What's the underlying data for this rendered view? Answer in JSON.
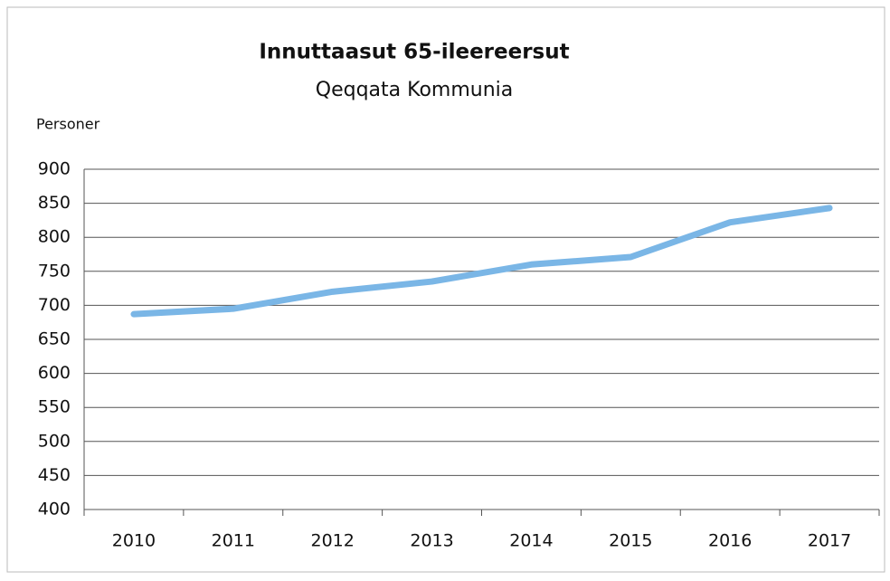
{
  "chart_data": {
    "type": "line",
    "title": "Innuttaasut 65-ileereersut",
    "subtitle": "Qeqqata Kommunia",
    "y_label": "Personer",
    "categories": [
      "2010",
      "2011",
      "2012",
      "2013",
      "2014",
      "2015",
      "2016",
      "2017"
    ],
    "series": [
      {
        "name": "Personer",
        "color": "#7ab6e6",
        "values": [
          687,
          695,
          720,
          735,
          760,
          771,
          822,
          843
        ]
      }
    ],
    "ylim": [
      400,
      900
    ],
    "yticks": [
      400,
      450,
      500,
      550,
      600,
      650,
      700,
      750,
      800,
      850,
      900
    ],
    "grid": true
  }
}
